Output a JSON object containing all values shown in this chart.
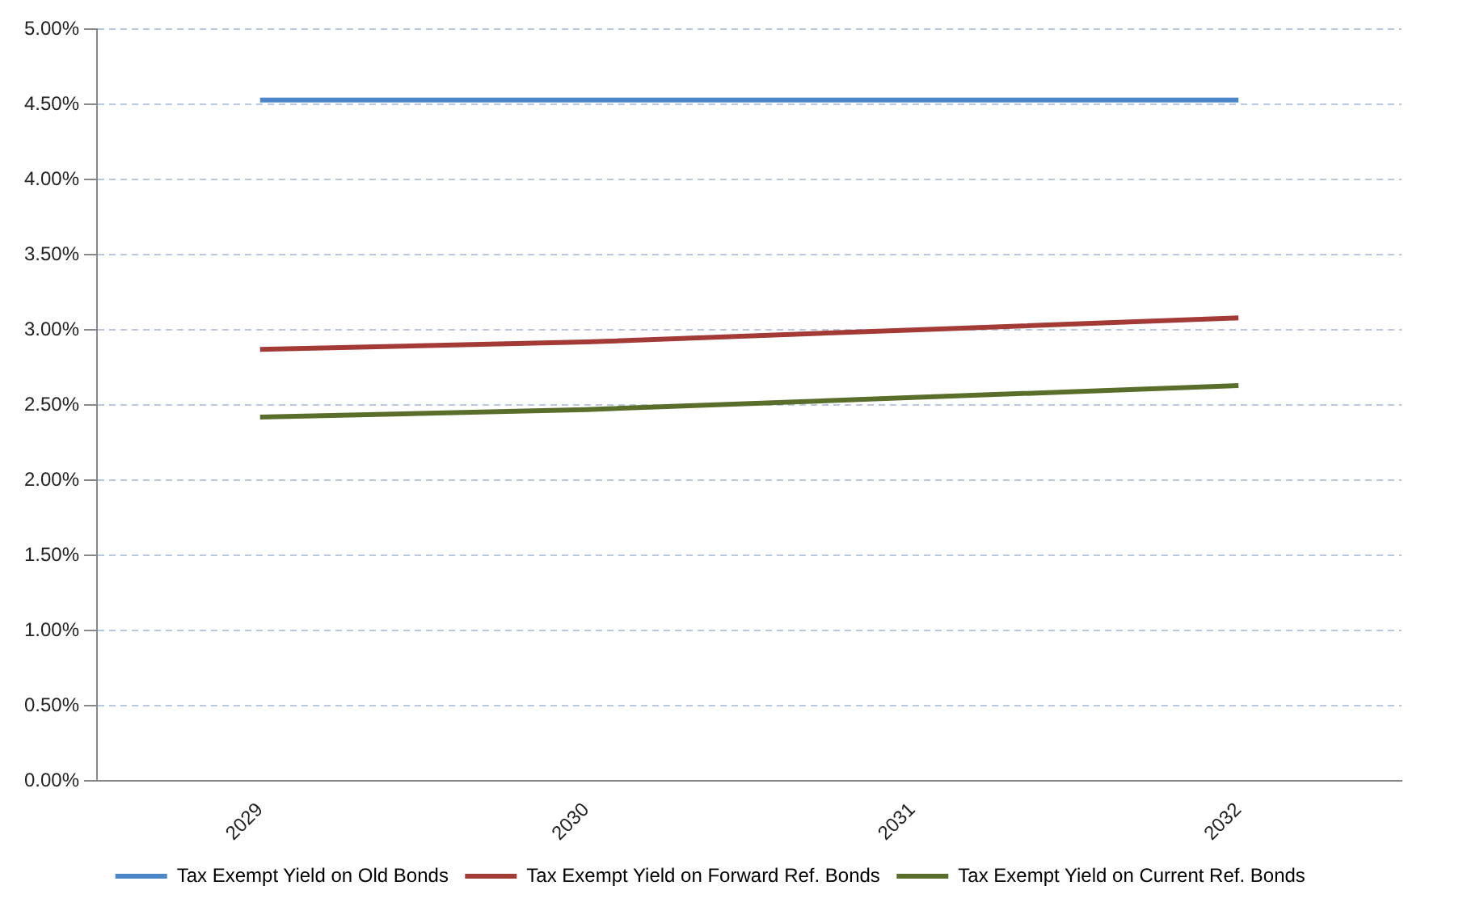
{
  "chart_data": {
    "type": "line",
    "categories": [
      "2029",
      "2030",
      "2031",
      "2032"
    ],
    "series": [
      {
        "name": "Tax Exempt Yield on Old Bonds",
        "color": "#4a86c8",
        "values": [
          4.53,
          4.53,
          4.53,
          4.53
        ]
      },
      {
        "name": "Tax Exempt Yield on Forward Ref. Bonds",
        "color": "#a33a36",
        "values": [
          2.87,
          2.92,
          3.0,
          3.08
        ]
      },
      {
        "name": "Tax Exempt Yield on Current Ref. Bonds",
        "color": "#596e2a",
        "values": [
          2.42,
          2.47,
          2.55,
          2.63
        ]
      }
    ],
    "ylim": [
      0,
      5
    ],
    "yticks": [
      {
        "value": 0,
        "label": "0.00%"
      },
      {
        "value": 0.5,
        "label": "0.50%"
      },
      {
        "value": 1,
        "label": "1.00%"
      },
      {
        "value": 1.5,
        "label": "1.50%"
      },
      {
        "value": 2,
        "label": "2.00%"
      },
      {
        "value": 2.5,
        "label": "2.50%"
      },
      {
        "value": 3,
        "label": "3.00%"
      },
      {
        "value": 3.5,
        "label": "3.50%"
      },
      {
        "value": 4,
        "label": "4.00%"
      },
      {
        "value": 4.5,
        "label": "4.50%"
      },
      {
        "value": 5,
        "label": "5.00%"
      }
    ],
    "grid": "y",
    "legend": "bottom",
    "marker": "none",
    "line_style": "solid"
  }
}
